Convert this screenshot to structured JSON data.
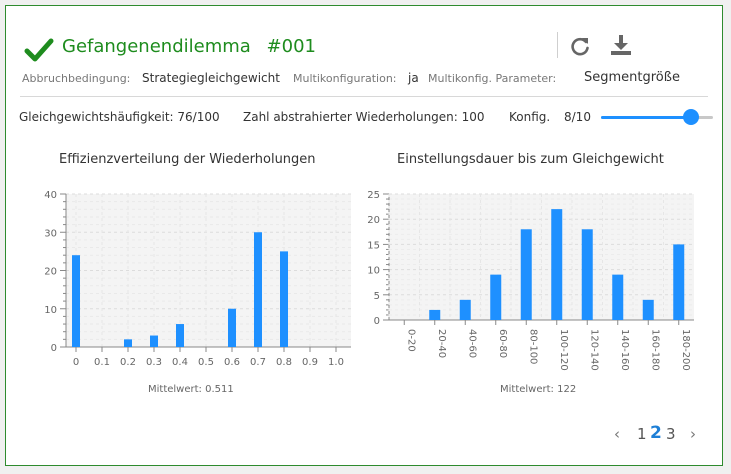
{
  "header": {
    "title": "Gefangenendilemma",
    "number": "#001",
    "status_icon": "check-icon",
    "colors": {
      "accent": "#1e8c1e",
      "bar": "#1e90ff"
    }
  },
  "params": {
    "abbruch_label": "Abbruchbedingung:",
    "abbruch_value": "Strategiegleichgewicht",
    "multi_label": "Multikonfiguration:",
    "multi_value": "ja",
    "multi_param_label": "Multikonfig. Parameter:",
    "multi_param_value": "Segmentgröße"
  },
  "stats": {
    "gleichgewicht": "Gleichgewichtshäufigkeit: 76/100",
    "wiederholungen": "Zahl abstrahierter Wiederholungen: 100",
    "konfig_label": "Konfig.",
    "konfig_value": "8/10",
    "konfig_fraction": 0.8
  },
  "charts": {
    "left_mean": "Mittelwert: 0.511",
    "right_mean": "Mittelwert: 122"
  },
  "chart_data": [
    {
      "type": "bar",
      "title": "Effizienzverteilung der Wiederholungen",
      "x": [
        0,
        0.2,
        0.3,
        0.4,
        0.6,
        0.7,
        0.8
      ],
      "values": [
        24,
        2,
        3,
        6,
        10,
        30,
        25
      ],
      "xticks": [
        "0",
        "0.1",
        "0.2",
        "0.3",
        "0.4",
        "0.5",
        "0.6",
        "0.7",
        "0.8",
        "0.9",
        "1.0"
      ],
      "xlim": [
        0,
        1.0
      ],
      "ylim": [
        0,
        40
      ],
      "yticks": [
        "0",
        "10",
        "20",
        "30",
        "40"
      ],
      "grid": true
    },
    {
      "type": "bar",
      "title": "Einstellungsdauer bis zum Gleichgewicht",
      "categories": [
        "0-20",
        "20-40",
        "40-60",
        "60-80",
        "80-100",
        "100-120",
        "120-140",
        "140-160",
        "160-180",
        "180-200"
      ],
      "values": [
        0,
        2,
        4,
        9,
        18,
        22,
        18,
        9,
        4,
        15
      ],
      "ylim": [
        0,
        25
      ],
      "yticks": [
        "0",
        "5",
        "10",
        "15",
        "20",
        "25"
      ],
      "grid": true
    }
  ],
  "pagination": {
    "prev": "‹",
    "pages": [
      "1",
      "2",
      "3"
    ],
    "current": "2",
    "next": "›"
  }
}
